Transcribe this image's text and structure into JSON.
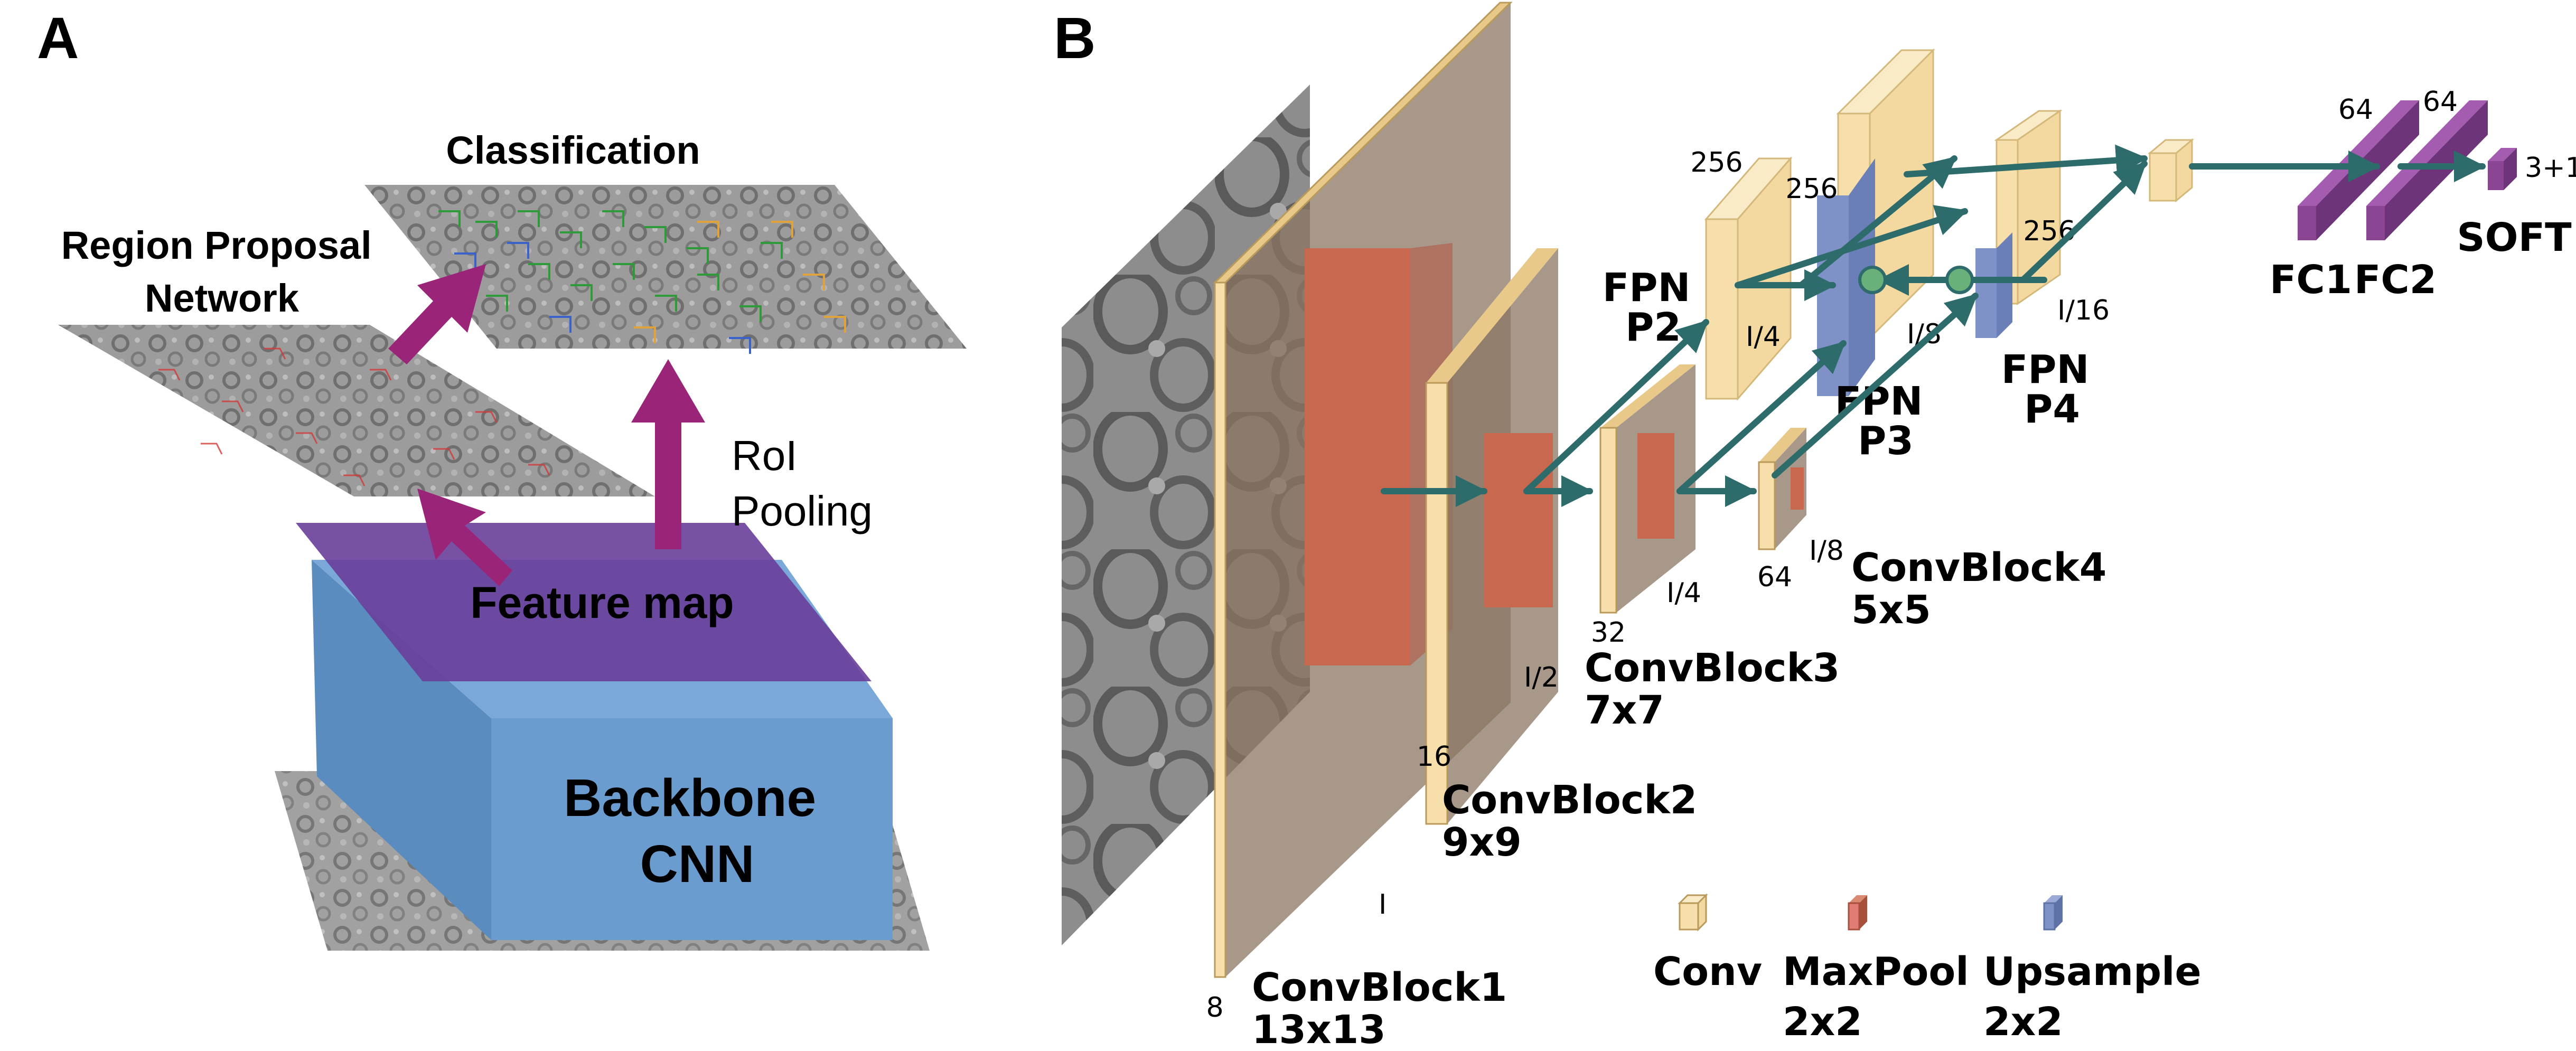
{
  "panel_a": {
    "letter": "A",
    "classification": "Classification",
    "rpn_line1": "Region Proposal",
    "rpn_line2": "Network",
    "roi_line1": "RoI",
    "roi_line2": "Pooling",
    "feature_map": "Feature map",
    "backbone_line1": "Backbone",
    "backbone_line2": "CNN"
  },
  "panel_b": {
    "letter": "B",
    "convblock1": {
      "name": "ConvBlock1",
      "kernel": "13x13",
      "channels": "8",
      "size": "I"
    },
    "convblock2": {
      "name": "ConvBlock2",
      "kernel": "9x9",
      "channels": "16",
      "size": "I/2"
    },
    "convblock3": {
      "name": "ConvBlock3",
      "kernel": "7x7",
      "channels": "32",
      "size": "I/4"
    },
    "convblock4": {
      "name": "ConvBlock4",
      "kernel": "5x5",
      "channels": "64",
      "size": "I/8"
    },
    "fpn_p2": {
      "line1": "FPN",
      "line2": "P2",
      "channels": "256",
      "size": "I/4"
    },
    "fpn_p3": {
      "line1": "FPN",
      "line2": "P3",
      "channels": "256",
      "size": "I/8"
    },
    "fpn_p4": {
      "line1": "FPN",
      "line2": "P4",
      "channels": "256",
      "size": "I/16"
    },
    "fc1": {
      "name": "FC1",
      "units": "64"
    },
    "fc2": {
      "name": "FC2",
      "units": "64"
    },
    "soft": {
      "name": "SOFT",
      "units": "3+1"
    },
    "legend": {
      "conv": "Conv",
      "maxpool_line1": "MaxPool",
      "maxpool_line2": "2x2",
      "upsample_line1": "Upsample",
      "upsample_line2": "2x2"
    }
  },
  "colors": {
    "conv": "#f6dfaa",
    "maxpool": "#c8694f",
    "upsample": "#7e92c8",
    "fc": "#8a4693",
    "arrow": "#2e6b6b",
    "feature_map": "#6a3e9a",
    "backbone": "#6a9ccf",
    "pink_arrow": "#9a2478"
  }
}
